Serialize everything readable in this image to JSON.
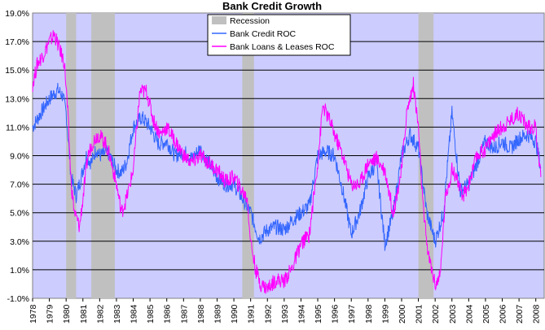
{
  "chart_data": {
    "type": "line",
    "title": "Bank Credit Growth",
    "xlabel": "",
    "ylabel": "",
    "xlim": [
      1978,
      2008.5
    ],
    "ylim": [
      -1.0,
      19.0
    ],
    "y_ticks": [
      "-1.0%",
      "1.0%",
      "3.0%",
      "5.0%",
      "7.0%",
      "9.0%",
      "11.0%",
      "13.0%",
      "15.0%",
      "17.0%",
      "19.0%"
    ],
    "x_ticks": [
      "1978",
      "1979",
      "1980",
      "1981",
      "1982",
      "1983",
      "1984",
      "1985",
      "1986",
      "1987",
      "1988",
      "1989",
      "1990",
      "1991",
      "1992",
      "1993",
      "1994",
      "1995",
      "1996",
      "1997",
      "1998",
      "1999",
      "2000",
      "2001",
      "2002",
      "2003",
      "2004",
      "2005",
      "2006",
      "2007",
      "2008"
    ],
    "grid": true,
    "legend_position": "top-center",
    "colors": {
      "plot_background": "#ccccff",
      "recession": "#c0c0c0",
      "bank_credit": "#3366ff",
      "loans_leases": "#ff00ff",
      "grid": "#000000"
    },
    "recessions": [
      {
        "start": 1980.0,
        "end": 1980.6
      },
      {
        "start": 1981.5,
        "end": 1982.9
      },
      {
        "start": 1990.5,
        "end": 1991.2
      },
      {
        "start": 2001.0,
        "end": 2001.9
      }
    ],
    "legend": [
      {
        "label": "Recession",
        "kind": "area",
        "color": "#c0c0c0"
      },
      {
        "label": "Bank Credit ROC",
        "kind": "line",
        "color": "#3366ff"
      },
      {
        "label": "Bank Loans & Leases ROC",
        "kind": "line",
        "color": "#ff00ff"
      }
    ],
    "series": [
      {
        "name": "Bank Credit ROC",
        "color": "#3366ff",
        "x": [
          1978.0,
          1978.5,
          1979.0,
          1979.5,
          1979.8,
          1980.0,
          1980.3,
          1980.6,
          1980.9,
          1981.2,
          1981.5,
          1981.8,
          1982.0,
          1982.5,
          1983.0,
          1983.3,
          1983.6,
          1984.0,
          1984.5,
          1985.0,
          1985.5,
          1986.0,
          1986.5,
          1987.0,
          1987.5,
          1988.0,
          1988.5,
          1989.0,
          1989.5,
          1990.0,
          1990.5,
          1991.0,
          1991.5,
          1992.0,
          1992.5,
          1993.0,
          1993.5,
          1994.0,
          1994.5,
          1995.0,
          1995.5,
          1996.0,
          1996.5,
          1997.0,
          1997.5,
          1998.0,
          1998.5,
          1999.0,
          1999.5,
          2000.0,
          2000.5,
          2001.0,
          2001.5,
          2002.0,
          2002.5,
          2003.0,
          2003.5,
          2004.0,
          2004.5,
          2005.0,
          2005.5,
          2006.0,
          2006.5,
          2007.0,
          2007.5,
          2008.0,
          2008.3
        ],
        "y": [
          11.0,
          12.0,
          13.0,
          13.6,
          13.2,
          12.0,
          7.5,
          6.2,
          7.5,
          9.0,
          8.5,
          9.5,
          9.0,
          9.2,
          8.0,
          7.8,
          8.5,
          11.0,
          11.7,
          11.0,
          9.8,
          10.0,
          9.0,
          9.3,
          8.8,
          9.5,
          8.5,
          7.5,
          7.0,
          7.0,
          6.0,
          5.0,
          3.2,
          3.8,
          4.0,
          3.8,
          4.5,
          5.0,
          5.5,
          9.0,
          9.3,
          9.0,
          6.5,
          3.5,
          5.0,
          7.5,
          8.5,
          2.8,
          5.0,
          9.0,
          10.5,
          9.5,
          5.0,
          3.0,
          5.0,
          12.0,
          6.5,
          7.0,
          8.5,
          10.0,
          9.5,
          10.0,
          9.5,
          10.2,
          10.5,
          10.0,
          8.2
        ]
      },
      {
        "name": "Bank Loans & Leases ROC",
        "color": "#ff00ff",
        "x": [
          1978.0,
          1978.3,
          1978.6,
          1979.0,
          1979.3,
          1979.6,
          1979.9,
          1980.1,
          1980.3,
          1980.5,
          1980.8,
          1981.0,
          1981.3,
          1981.6,
          1981.9,
          1982.3,
          1982.6,
          1983.0,
          1983.3,
          1983.6,
          1984.0,
          1984.4,
          1984.8,
          1985.2,
          1985.6,
          1986.0,
          1986.5,
          1987.0,
          1987.5,
          1988.0,
          1988.5,
          1989.0,
          1989.5,
          1990.0,
          1990.5,
          1990.8,
          1991.0,
          1991.3,
          1991.6,
          1992.0,
          1992.5,
          1993.0,
          1993.5,
          1994.0,
          1994.5,
          1995.0,
          1995.3,
          1995.7,
          1996.0,
          1996.5,
          1997.0,
          1997.5,
          1998.0,
          1998.5,
          1999.0,
          1999.5,
          2000.0,
          2000.3,
          2000.7,
          2001.0,
          2001.3,
          2001.6,
          2002.0,
          2002.3,
          2002.6,
          2003.0,
          2003.3,
          2003.6,
          2004.0,
          2004.5,
          2005.0,
          2005.5,
          2006.0,
          2006.5,
          2007.0,
          2007.5,
          2008.0,
          2008.3
        ],
        "y": [
          14.0,
          15.5,
          16.0,
          17.0,
          17.5,
          16.5,
          15.5,
          12.0,
          7.0,
          5.0,
          4.0,
          6.0,
          9.0,
          10.0,
          10.5,
          10.0,
          9.0,
          7.0,
          5.0,
          6.0,
          8.0,
          13.5,
          13.5,
          11.5,
          10.5,
          11.0,
          10.0,
          9.0,
          8.5,
          9.0,
          8.5,
          8.0,
          7.2,
          7.5,
          6.5,
          6.0,
          3.0,
          1.0,
          0.0,
          -0.3,
          0.3,
          0.2,
          1.2,
          2.8,
          3.5,
          8.5,
          12.5,
          11.5,
          10.5,
          9.0,
          7.0,
          7.0,
          8.5,
          8.8,
          8.0,
          5.0,
          8.0,
          12.0,
          14.0,
          11.0,
          5.0,
          2.0,
          0.0,
          0.5,
          6.0,
          8.0,
          7.5,
          6.0,
          7.0,
          9.0,
          9.5,
          10.5,
          11.0,
          11.5,
          12.0,
          11.0,
          11.0,
          7.5
        ]
      }
    ]
  }
}
